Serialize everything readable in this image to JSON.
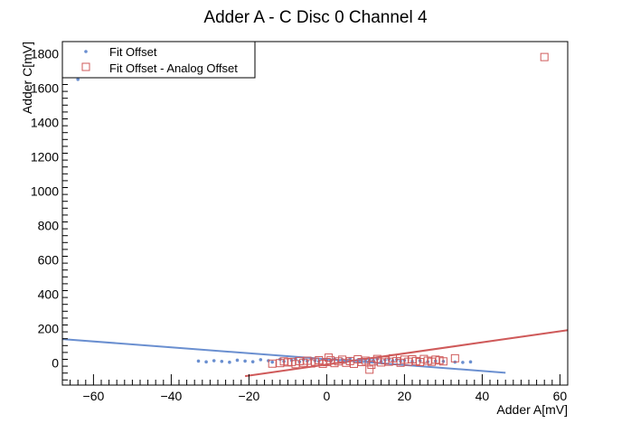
{
  "chart_data": {
    "type": "scatter",
    "title": "Adder A - C Disc 0 Channel 4",
    "xlabel": "Adder A[mV]",
    "ylabel": "Adder C[mV]",
    "xlim": [
      -68,
      62
    ],
    "ylim": [
      -130,
      1870
    ],
    "xticks": [
      -60,
      -40,
      -20,
      0,
      20,
      40,
      60
    ],
    "yticks": [
      0,
      200,
      400,
      600,
      800,
      1000,
      1200,
      1400,
      1600,
      1800
    ],
    "grid": false,
    "legend_position": "top-left",
    "colors": {
      "fit_offset": "#6a8fd0",
      "analog_offset": "#cf5a5a"
    },
    "series": [
      {
        "name": "Fit Offset",
        "marker": "dot",
        "color": "#6a8fd0",
        "points": [
          [
            -64,
            1650
          ],
          [
            -33,
            10
          ],
          [
            -31,
            5
          ],
          [
            -29,
            12
          ],
          [
            -27,
            8
          ],
          [
            -25,
            3
          ],
          [
            -23,
            15
          ],
          [
            -21,
            10
          ],
          [
            -19,
            6
          ],
          [
            -17,
            18
          ],
          [
            -15,
            12
          ],
          [
            -14,
            4
          ],
          [
            -12,
            20
          ],
          [
            -11,
            8
          ],
          [
            -9,
            14
          ],
          [
            -8,
            22
          ],
          [
            -7,
            6
          ],
          [
            -6,
            18
          ],
          [
            -5,
            10
          ],
          [
            -4,
            25
          ],
          [
            -3,
            12
          ],
          [
            -2,
            8
          ],
          [
            -1,
            20
          ],
          [
            0,
            15
          ],
          [
            1,
            10
          ],
          [
            2,
            22
          ],
          [
            3,
            14
          ],
          [
            4,
            18
          ],
          [
            5,
            8
          ],
          [
            6,
            24
          ],
          [
            7,
            12
          ],
          [
            8,
            16
          ],
          [
            9,
            20
          ],
          [
            10,
            10
          ],
          [
            11,
            18
          ],
          [
            12,
            14
          ],
          [
            13,
            22
          ],
          [
            14,
            8
          ],
          [
            15,
            16
          ],
          [
            16,
            20
          ],
          [
            17,
            12
          ],
          [
            18,
            18
          ],
          [
            19,
            10
          ],
          [
            20,
            14
          ],
          [
            22,
            8
          ],
          [
            24,
            12
          ],
          [
            26,
            6
          ],
          [
            28,
            10
          ],
          [
            30,
            8
          ],
          [
            33,
            4
          ],
          [
            35,
            2
          ],
          [
            37,
            5
          ]
        ],
        "fit_line": {
          "x": [
            -68,
            46
          ],
          "y": [
            138,
            -58
          ]
        }
      },
      {
        "name": "Fit Offset - Analog Offset",
        "marker": "open-square",
        "color": "#cf5a5a",
        "points": [
          [
            56,
            1780
          ],
          [
            -14,
            -5
          ],
          [
            -12,
            -2
          ],
          [
            -11,
            8
          ],
          [
            -10,
            2
          ],
          [
            -9,
            5
          ],
          [
            -8,
            -8
          ],
          [
            -7,
            10
          ],
          [
            -6,
            0
          ],
          [
            -5,
            12
          ],
          [
            -4,
            -4
          ],
          [
            -3,
            6
          ],
          [
            -2,
            15
          ],
          [
            -1,
            -6
          ],
          [
            0,
            4
          ],
          [
            0.5,
            30
          ],
          [
            1,
            14
          ],
          [
            2,
            -2
          ],
          [
            3,
            8
          ],
          [
            4,
            18
          ],
          [
            5,
            0
          ],
          [
            6,
            10
          ],
          [
            7,
            -6
          ],
          [
            8,
            20
          ],
          [
            9,
            4
          ],
          [
            10,
            12
          ],
          [
            11,
            -40
          ],
          [
            11.5,
            -12
          ],
          [
            12,
            8
          ],
          [
            13,
            22
          ],
          [
            14,
            2
          ],
          [
            15,
            14
          ],
          [
            16,
            6
          ],
          [
            17,
            26
          ],
          [
            18,
            10
          ],
          [
            19,
            0
          ],
          [
            20,
            18
          ],
          [
            21,
            6
          ],
          [
            22,
            20
          ],
          [
            23,
            10
          ],
          [
            24,
            4
          ],
          [
            25,
            22
          ],
          [
            26,
            12
          ],
          [
            27,
            6
          ],
          [
            28,
            18
          ],
          [
            29,
            14
          ],
          [
            30,
            8
          ],
          [
            33,
            26
          ]
        ],
        "fit_line": {
          "x": [
            -21,
            62
          ],
          "y": [
            -78,
            190
          ]
        }
      }
    ]
  }
}
